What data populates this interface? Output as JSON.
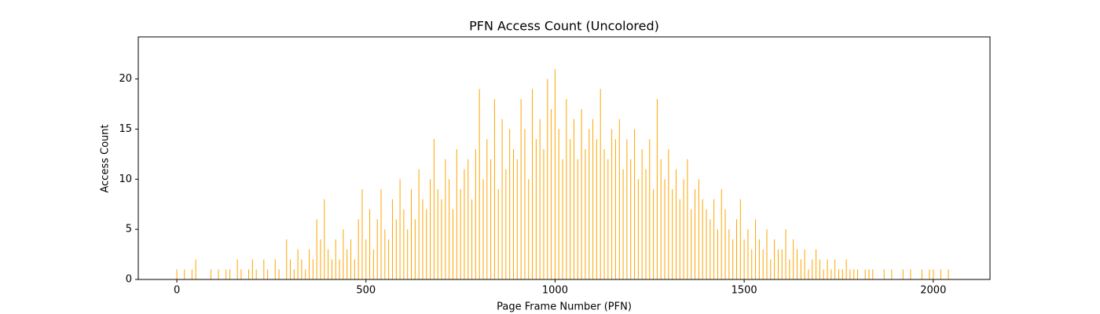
{
  "chart_data": {
    "type": "bar",
    "title": "PFN Access Count (Uncolored)",
    "x_label": "Page Frame Number (PFN)",
    "y_label": "Access Count",
    "color": "#ffa500",
    "xlim": [
      -102,
      2150
    ],
    "ylim": [
      0,
      24.2
    ],
    "xticks": [
      0,
      500,
      1000,
      1500,
      2000
    ],
    "yticks": [
      0,
      5,
      10,
      15,
      20
    ],
    "x": [
      0,
      10,
      20,
      30,
      40,
      50,
      60,
      70,
      80,
      90,
      100,
      110,
      120,
      130,
      140,
      150,
      160,
      170,
      180,
      190,
      200,
      210,
      220,
      230,
      240,
      250,
      260,
      270,
      280,
      290,
      300,
      310,
      320,
      330,
      340,
      350,
      360,
      370,
      380,
      390,
      400,
      410,
      420,
      430,
      440,
      450,
      460,
      470,
      480,
      490,
      500,
      510,
      520,
      530,
      540,
      550,
      560,
      570,
      580,
      590,
      600,
      610,
      620,
      630,
      640,
      650,
      660,
      670,
      680,
      690,
      700,
      710,
      720,
      730,
      740,
      750,
      760,
      770,
      780,
      790,
      800,
      810,
      820,
      830,
      840,
      850,
      860,
      870,
      880,
      890,
      900,
      910,
      920,
      930,
      940,
      950,
      960,
      970,
      980,
      990,
      1000,
      1010,
      1020,
      1030,
      1040,
      1050,
      1060,
      1070,
      1080,
      1090,
      1100,
      1110,
      1120,
      1130,
      1140,
      1150,
      1160,
      1170,
      1180,
      1190,
      1200,
      1210,
      1220,
      1230,
      1240,
      1250,
      1260,
      1270,
      1280,
      1290,
      1300,
      1310,
      1320,
      1330,
      1340,
      1350,
      1360,
      1370,
      1380,
      1390,
      1400,
      1410,
      1420,
      1430,
      1440,
      1450,
      1460,
      1470,
      1480,
      1490,
      1500,
      1510,
      1520,
      1530,
      1540,
      1550,
      1560,
      1570,
      1580,
      1590,
      1600,
      1610,
      1620,
      1630,
      1640,
      1650,
      1660,
      1670,
      1680,
      1690,
      1700,
      1710,
      1720,
      1730,
      1740,
      1750,
      1760,
      1770,
      1780,
      1790,
      1800,
      1810,
      1820,
      1830,
      1840,
      1850,
      1860,
      1870,
      1880,
      1890,
      1900,
      1910,
      1920,
      1930,
      1940,
      1950,
      1960,
      1970,
      1980,
      1990,
      2000,
      2010,
      2020,
      2030,
      2040
    ],
    "values": [
      1,
      0,
      1,
      0,
      1,
      2,
      0,
      0,
      0,
      1,
      0,
      1,
      0,
      1,
      1,
      0,
      2,
      1,
      0,
      1,
      2,
      1,
      0,
      2,
      1,
      0,
      2,
      1,
      0,
      4,
      2,
      1,
      3,
      2,
      1,
      3,
      2,
      6,
      4,
      8,
      3,
      2,
      4,
      2,
      5,
      3,
      4,
      2,
      6,
      9,
      4,
      7,
      3,
      6,
      9,
      5,
      4,
      8,
      6,
      10,
      7,
      5,
      9,
      6,
      11,
      8,
      7,
      10,
      14,
      9,
      8,
      12,
      10,
      7,
      13,
      9,
      11,
      12,
      8,
      13,
      19,
      10,
      14,
      12,
      18,
      9,
      16,
      11,
      15,
      13,
      12,
      18,
      15,
      10,
      19,
      14,
      16,
      13,
      20,
      17,
      21,
      15,
      12,
      18,
      14,
      16,
      12,
      17,
      13,
      15,
      16,
      14,
      19,
      13,
      12,
      15,
      14,
      16,
      11,
      14,
      12,
      15,
      10,
      13,
      11,
      14,
      9,
      18,
      12,
      10,
      13,
      9,
      11,
      8,
      10,
      12,
      7,
      9,
      10,
      8,
      7,
      6,
      8,
      5,
      9,
      7,
      5,
      4,
      6,
      8,
      4,
      5,
      3,
      6,
      4,
      3,
      5,
      2,
      4,
      3,
      3,
      5,
      2,
      4,
      3,
      2,
      3,
      1,
      2,
      3,
      2,
      1,
      2,
      1,
      2,
      1,
      1,
      2,
      1,
      1,
      1,
      0,
      1,
      1,
      1,
      0,
      0,
      1,
      0,
      1,
      0,
      0,
      1,
      0,
      1,
      0,
      0,
      1,
      0,
      1,
      1,
      0,
      1,
      0,
      1
    ]
  }
}
